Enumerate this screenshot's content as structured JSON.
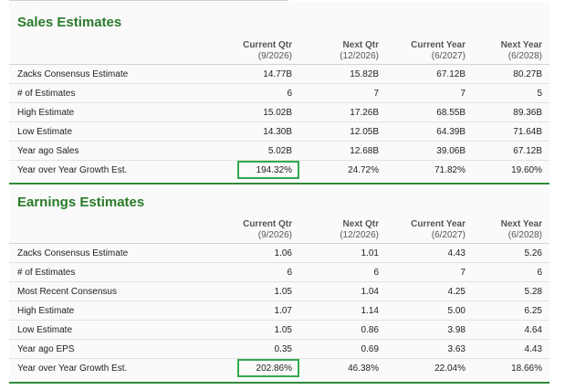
{
  "sales": {
    "title": "Sales Estimates",
    "headers": [
      {
        "label": "",
        "sub": ""
      },
      {
        "label": "Current Qtr",
        "sub": "(9/2026)"
      },
      {
        "label": "Next Qtr",
        "sub": "(12/2026)"
      },
      {
        "label": "Current Year",
        "sub": "(6/2027)"
      },
      {
        "label": "Next Year",
        "sub": "(6/2028)"
      }
    ],
    "rows": [
      [
        "Zacks Consensus Estimate",
        "14.77B",
        "15.82B",
        "67.12B",
        "80.27B"
      ],
      [
        "# of Estimates",
        "6",
        "7",
        "7",
        "5"
      ],
      [
        "High Estimate",
        "15.02B",
        "17.26B",
        "68.55B",
        "89.36B"
      ],
      [
        "Low Estimate",
        "14.30B",
        "12.05B",
        "64.39B",
        "71.64B"
      ],
      [
        "Year ago Sales",
        "5.02B",
        "12.68B",
        "39.06B",
        "67.12B"
      ],
      [
        "Year over Year Growth Est.",
        "194.32%",
        "24.72%",
        "71.82%",
        "19.60%"
      ]
    ],
    "highlight": {
      "row": 5,
      "col": 1
    },
    "accent_color": "#36a852"
  },
  "earnings": {
    "title": "Earnings Estimates",
    "headers": [
      {
        "label": "",
        "sub": ""
      },
      {
        "label": "Current Qtr",
        "sub": "(9/2026)"
      },
      {
        "label": "Next Qtr",
        "sub": "(12/2026)"
      },
      {
        "label": "Current Year",
        "sub": "(6/2027)"
      },
      {
        "label": "Next Year",
        "sub": "(6/2028)"
      }
    ],
    "rows": [
      [
        "Zacks Consensus Estimate",
        "1.06",
        "1.01",
        "4.43",
        "5.26"
      ],
      [
        "# of Estimates",
        "6",
        "6",
        "7",
        "6"
      ],
      [
        "Most Recent Consensus",
        "1.05",
        "1.04",
        "4.25",
        "5.28"
      ],
      [
        "High Estimate",
        "1.07",
        "1.14",
        "5.00",
        "6.25"
      ],
      [
        "Low Estimate",
        "1.05",
        "0.86",
        "3.98",
        "4.64"
      ],
      [
        "Year ago EPS",
        "0.35",
        "0.69",
        "3.63",
        "4.43"
      ],
      [
        "Year over Year Growth Est.",
        "202.86%",
        "46.38%",
        "22.04%",
        "18.66%"
      ]
    ],
    "highlight": {
      "row": 6,
      "col": 1
    },
    "accent_color": "#36a852"
  },
  "title_color": "#2b7a2b",
  "rule_color": "#2e8b3a"
}
